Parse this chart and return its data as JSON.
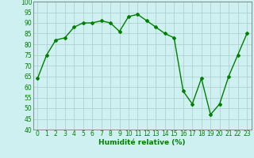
{
  "x": [
    0,
    1,
    2,
    3,
    4,
    5,
    6,
    7,
    8,
    9,
    10,
    11,
    12,
    13,
    14,
    15,
    16,
    17,
    18,
    19,
    20,
    21,
    22,
    23
  ],
  "y": [
    64,
    75,
    82,
    83,
    88,
    90,
    90,
    91,
    90,
    86,
    93,
    94,
    91,
    88,
    85,
    83,
    58,
    52,
    64,
    47,
    52,
    65,
    75,
    85
  ],
  "line_color": "#008000",
  "marker": "D",
  "marker_size": 2,
  "background_color": "#cff0f0",
  "grid_color": "#aacccc",
  "xlabel": "Humidité relative (%)",
  "xlabel_color": "#008000",
  "ylim": [
    40,
    100
  ],
  "xlim": [
    -0.5,
    23.5
  ],
  "yticks": [
    40,
    45,
    50,
    55,
    60,
    65,
    70,
    75,
    80,
    85,
    90,
    95,
    100
  ],
  "xticks": [
    0,
    1,
    2,
    3,
    4,
    5,
    6,
    7,
    8,
    9,
    10,
    11,
    12,
    13,
    14,
    15,
    16,
    17,
    18,
    19,
    20,
    21,
    22,
    23
  ],
  "tick_label_size": 5.5,
  "xlabel_fontsize": 6.5,
  "line_width": 1.0
}
